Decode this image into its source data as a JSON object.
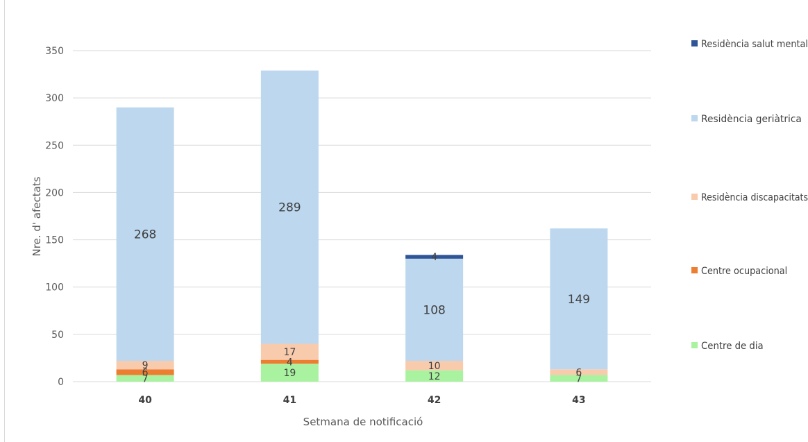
{
  "chart_data": {
    "type": "bar",
    "stacked": true,
    "title": "",
    "xlabel": "Setmana de notificació",
    "ylabel": "Nre. d' afectats",
    "ylim": [
      0,
      350
    ],
    "yticks": [
      0,
      50,
      100,
      150,
      200,
      250,
      300,
      350
    ],
    "grid": true,
    "legend_position": "right",
    "categories": [
      "40",
      "41",
      "42",
      "43"
    ],
    "series": [
      {
        "name": "Centre de dia",
        "color": "#a9f3a0",
        "values": [
          7,
          19,
          12,
          7
        ],
        "labels": [
          "7",
          "19",
          "12",
          "7"
        ]
      },
      {
        "name": "Centre ocupacional",
        "color": "#ed7d31",
        "values": [
          6,
          4,
          0,
          0
        ],
        "labels": [
          "6",
          "4",
          "",
          ""
        ]
      },
      {
        "name": "Residència discapacitats",
        "color": "#f8cbad",
        "values": [
          9,
          17,
          10,
          6
        ],
        "labels": [
          "9",
          "17",
          "10",
          "6"
        ]
      },
      {
        "name": "Residència geriàtrica",
        "color": "#bdd7ee",
        "values": [
          268,
          289,
          108,
          149
        ],
        "labels": [
          "268",
          "289",
          "108",
          "149"
        ]
      },
      {
        "name": "Residència salut mental",
        "color": "#2f5597",
        "values": [
          0,
          0,
          4,
          0
        ],
        "labels": [
          "",
          "",
          "4",
          ""
        ]
      }
    ],
    "legend_order": [
      "Residència salut mental",
      "Residència geriàtrica",
      "Residència discapacitats",
      "Centre ocupacional",
      "Centre de dia"
    ]
  }
}
